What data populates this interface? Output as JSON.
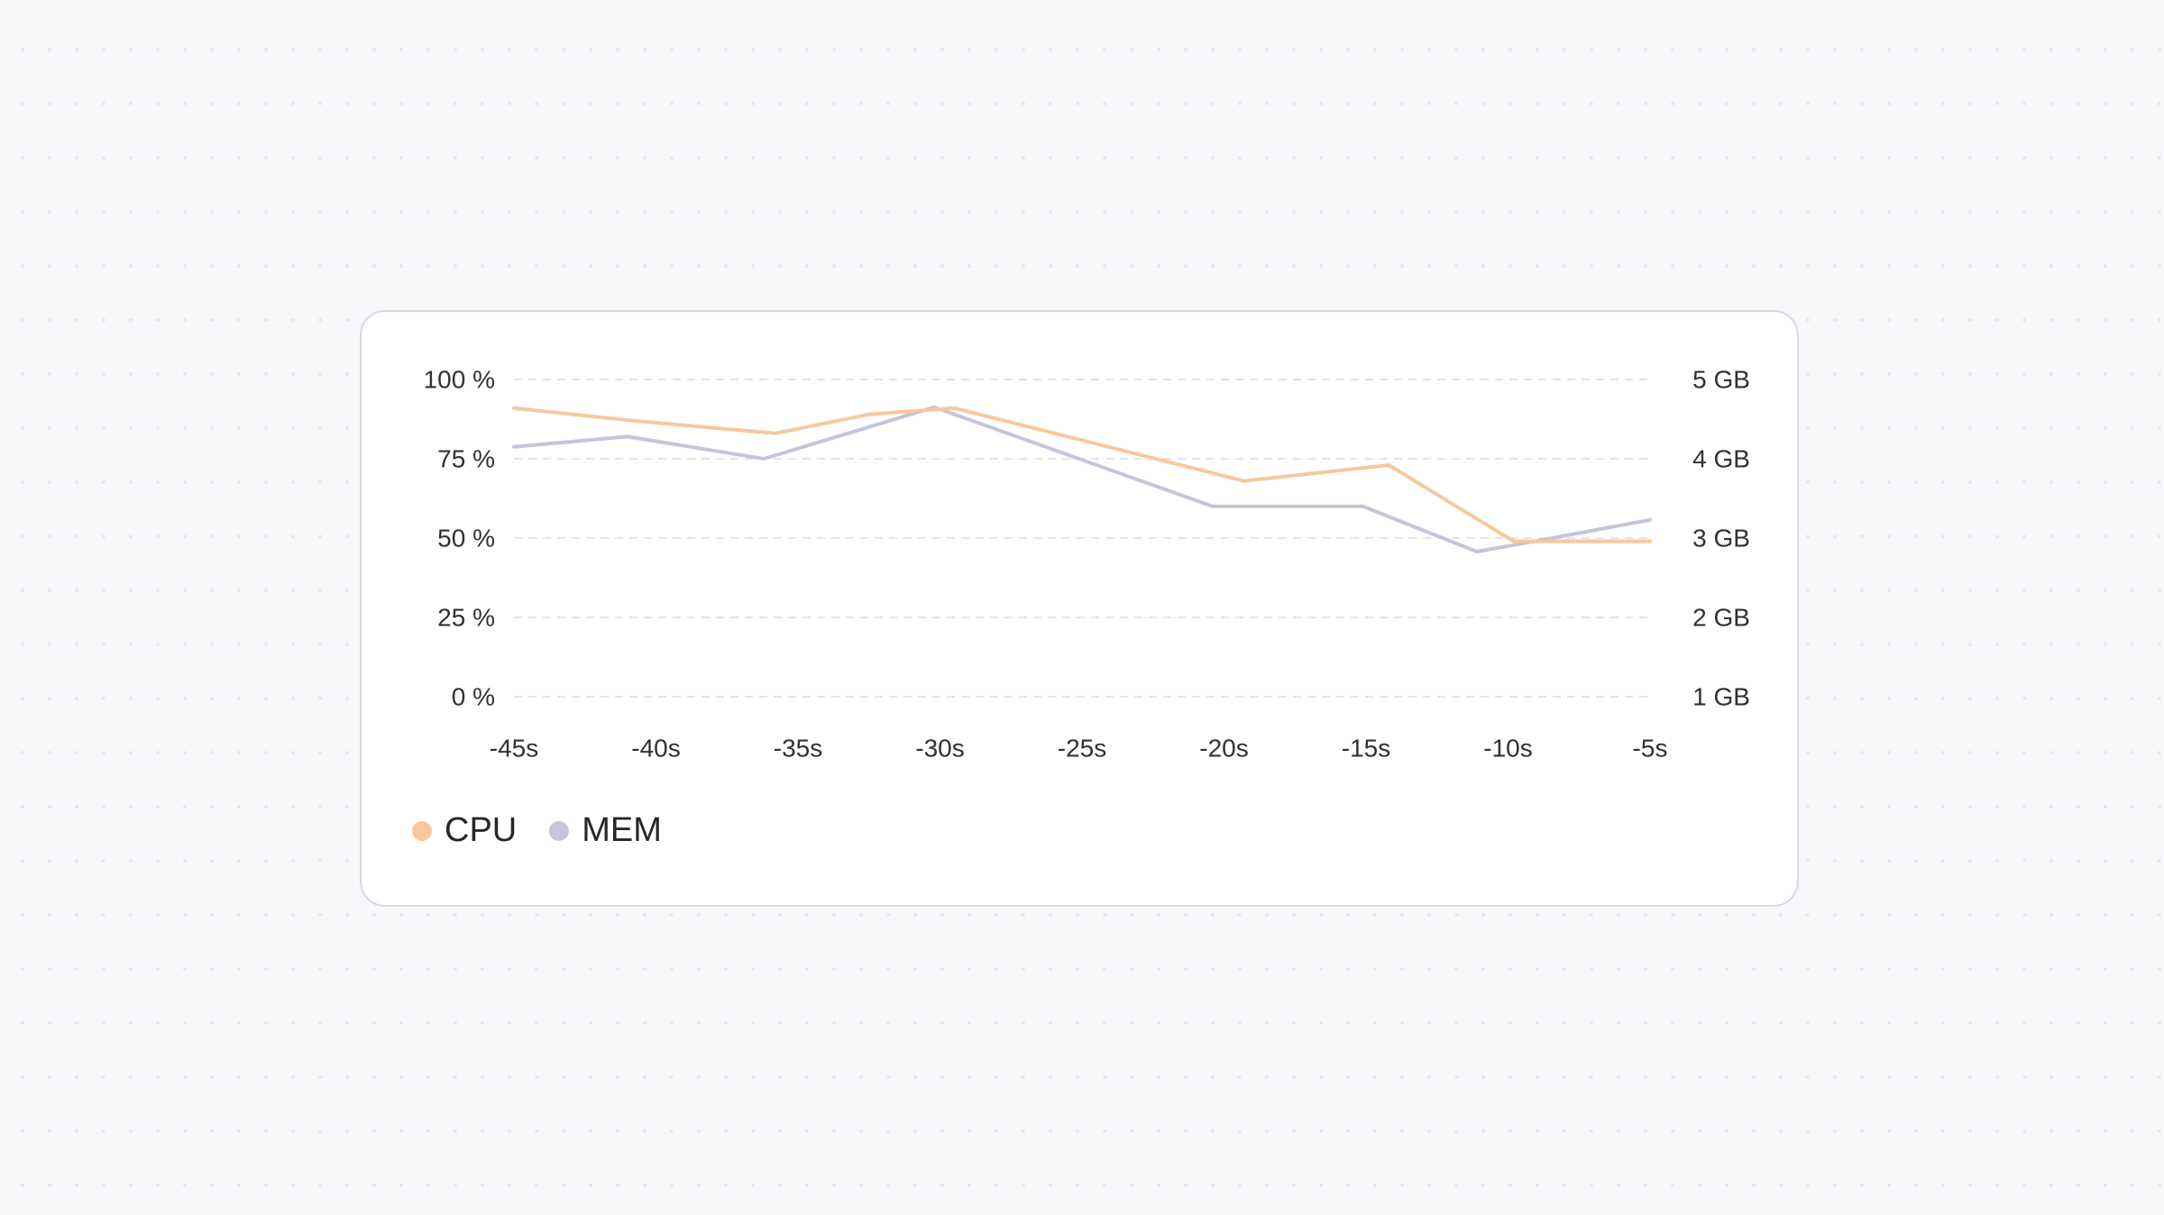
{
  "chart_data": {
    "type": "line",
    "x_ticks": [
      "-45s",
      "-40s",
      "-35s",
      "-30s",
      "-25s",
      "-20s",
      "-15s",
      "-10s",
      "-5s"
    ],
    "xlim": [
      -45,
      -5
    ],
    "y_left": {
      "ticks": [
        "100 %",
        "75 %",
        "50 %",
        "25 %",
        "0 %"
      ],
      "ylim": [
        0,
        100
      ],
      "unit": "%"
    },
    "y_right": {
      "ticks": [
        "5 GB",
        "4 GB",
        "3 GB",
        "2 GB",
        "1 GB"
      ],
      "ylim": [
        1,
        5
      ],
      "unit": "GB"
    },
    "grid": "horizontal dashed",
    "legend_position": "bottom-left",
    "series": [
      {
        "name": "CPU",
        "axis": "left",
        "color": "#f7c89c",
        "x": [
          -45,
          -40.8,
          -35.8,
          -32.5,
          -29.5,
          -19.3,
          -14.2,
          -9.8,
          -5
        ],
        "y": [
          91,
          87,
          83,
          89,
          91,
          68,
          73,
          49,
          49
        ]
      },
      {
        "name": "MEM",
        "axis": "right",
        "color": "#c4c4db",
        "x": [
          -45,
          -41,
          -36.2,
          -30.2,
          -20.4,
          -15.1,
          -11.1,
          -8.9,
          -5
        ],
        "y": [
          4.15,
          4.28,
          4.0,
          4.65,
          3.4,
          3.4,
          2.83,
          2.97,
          3.23
        ]
      }
    ]
  },
  "legend": {
    "items": [
      {
        "label": "CPU",
        "color": "#f7c89c"
      },
      {
        "label": "MEM",
        "color": "#c4c4db"
      }
    ]
  }
}
